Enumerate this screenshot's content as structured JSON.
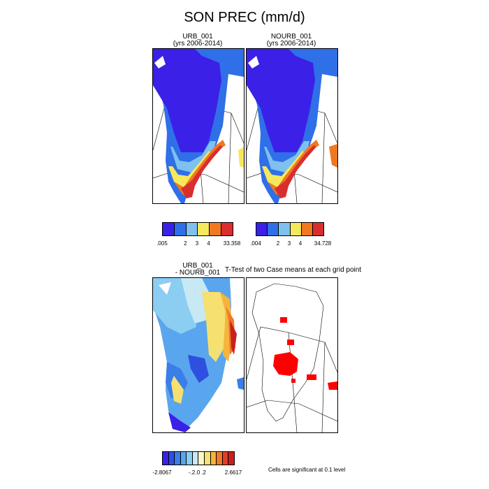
{
  "title": "SON PREC (mm/d)",
  "panels": {
    "urb": {
      "name": "URB_001",
      "years": "(yrs 2006-2014)"
    },
    "nourb": {
      "name": "NOURB_001",
      "years": "(yrs 2006-2014)"
    },
    "diff": {
      "line1": "URB_001",
      "line2": "- NOURB_001"
    },
    "ttest": {
      "title": "T-Test of two Case means at each grid point"
    }
  },
  "colorbars": {
    "urb": {
      "colors": [
        "#3b20e8",
        "#2f6fe8",
        "#7ec1ee",
        "#f5e85c",
        "#f07820",
        "#d92e2e"
      ],
      "labels": [
        ".005",
        "2",
        "3",
        "4",
        "33.358"
      ]
    },
    "nourb": {
      "colors": [
        "#3b20e8",
        "#2f6fe8",
        "#7ec1ee",
        "#f5e85c",
        "#f07820",
        "#d92e2e"
      ],
      "labels": [
        ".004",
        "2",
        "3",
        "4",
        "34.728"
      ]
    },
    "diff": {
      "colors": [
        "#3b20e8",
        "#2f4fe0",
        "#3a7ee8",
        "#5aa6ee",
        "#8ccdf2",
        "#c8e8f4",
        "#fbf6c8",
        "#f5e070",
        "#f6b43c",
        "#f07a28",
        "#e0402a",
        "#c82020"
      ],
      "labels": [
        "-2.8067",
        "-.2",
        ".0",
        ".2",
        "2.6617"
      ]
    }
  },
  "significance_note": "Cells are significant at 0.1 level",
  "colors": {
    "significant": "#ff0000"
  }
}
